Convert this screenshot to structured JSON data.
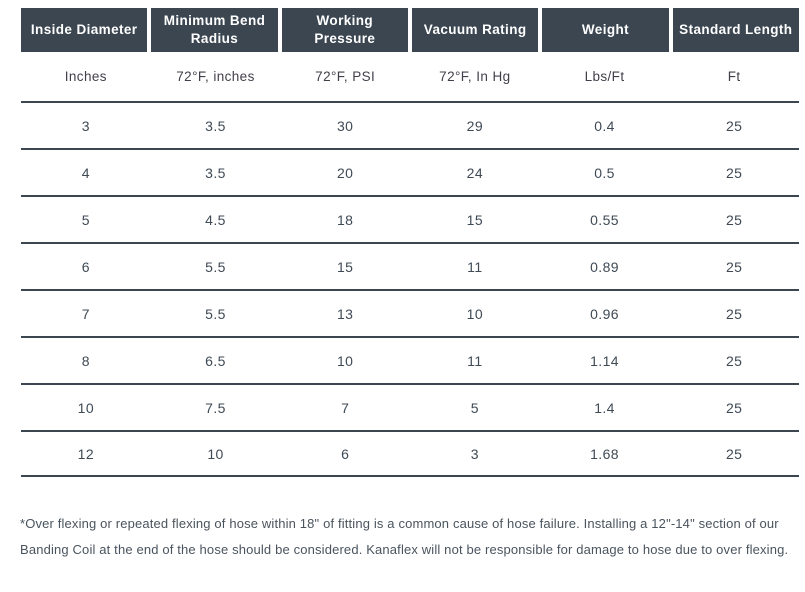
{
  "table": {
    "columns": [
      {
        "label": "Inside Diameter",
        "unit": "Inches"
      },
      {
        "label": "Minimum Bend Radius",
        "unit": "72°F, inches"
      },
      {
        "label": "Working Pressure",
        "unit": "72°F, PSI"
      },
      {
        "label": "Vacuum Rating",
        "unit": "72°F, In Hg"
      },
      {
        "label": "Weight",
        "unit": "Lbs/Ft"
      },
      {
        "label": "Standard Length",
        "unit": "Ft"
      }
    ],
    "rows": [
      [
        "3",
        "3.5",
        "30",
        "29",
        "0.4",
        "25"
      ],
      [
        "4",
        "3.5",
        "20",
        "24",
        "0.5",
        "25"
      ],
      [
        "5",
        "4.5",
        "18",
        "15",
        "0.55",
        "25"
      ],
      [
        "6",
        "5.5",
        "15",
        "11",
        "0.89",
        "25"
      ],
      [
        "7",
        "5.5",
        "13",
        "10",
        "0.96",
        "25"
      ],
      [
        "8",
        "6.5",
        "10",
        "11",
        "1.14",
        "25"
      ],
      [
        "10",
        "7.5",
        "7",
        "5",
        "1.4",
        "25"
      ],
      [
        "12",
        "10",
        "6",
        "3",
        "1.68",
        "25"
      ]
    ]
  },
  "footnote": "*Over flexing or repeated flexing of hose within 18\" of fitting is a common cause of hose failure. Installing a 12\"-14\" section of our Banding Coil at the end of the hose should be considered. Kanaflex will not be responsible for damage to hose due to over flexing.",
  "colors": {
    "header_bg": "#3B4651",
    "header_text": "#FFFFFF",
    "body_text": "#3F4A55",
    "rule_line": "#3B4651",
    "footnote_text": "#4A545E"
  }
}
